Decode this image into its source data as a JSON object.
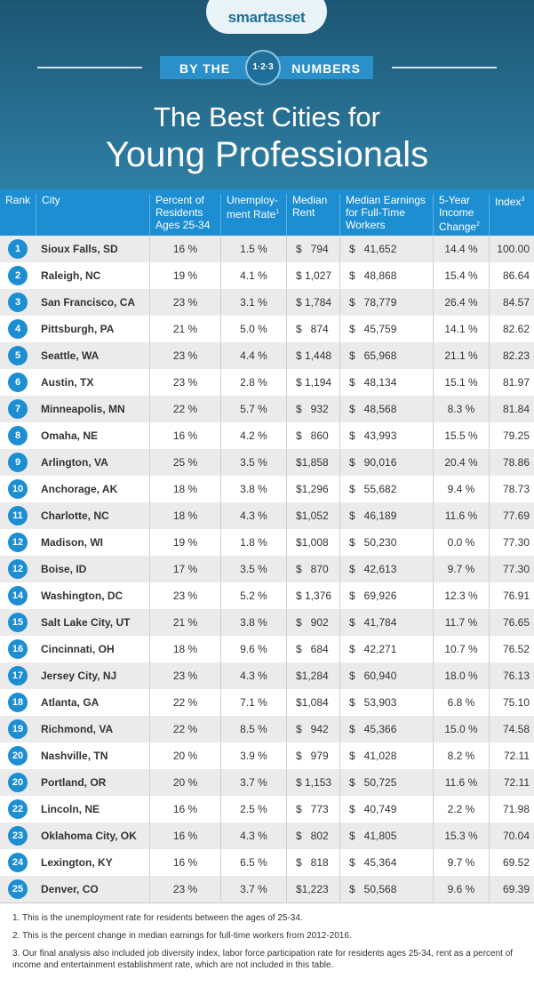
{
  "header": {
    "logo": "smartasset",
    "banner": [
      "BY THE",
      "1·2·3",
      "NUMBERS"
    ],
    "title_line1": "The Best Cities for",
    "title_line2": "Young Professionals"
  },
  "table": {
    "columns": [
      {
        "text": "Rank"
      },
      {
        "text": "City"
      },
      {
        "text": "Percent of Residents Ages 25-34"
      },
      {
        "text": "Unemploy-ment Rate",
        "note": "1"
      },
      {
        "text": "Median Rent"
      },
      {
        "text": "Median Earnings for Full-Time Workers"
      },
      {
        "text": "5-Year Income Change",
        "note": "2"
      },
      {
        "text": "Index",
        "note": "3"
      }
    ],
    "rows": [
      [
        "1",
        "Sioux Falls, SD",
        "16 %",
        "1.5 %",
        "$   794",
        "$   41,652",
        "14.4 %",
        "100.00"
      ],
      [
        "2",
        "Raleigh, NC",
        "19 %",
        "4.1 %",
        "$ 1,027",
        "$   48,868",
        "15.4 %",
        "86.64"
      ],
      [
        "3",
        "San Francisco, CA",
        "23 %",
        "3.1 %",
        "$ 1,784",
        "$   78,779",
        "26.4 %",
        "84.57"
      ],
      [
        "4",
        "Pittsburgh, PA",
        "21 %",
        "5.0 %",
        "$   874",
        "$   45,759",
        "14.1 %",
        "82.62"
      ],
      [
        "5",
        "Seattle, WA",
        "23 %",
        "4.4 %",
        "$ 1,448",
        "$   65,968",
        "21.1 %",
        "82.23"
      ],
      [
        "6",
        "Austin, TX",
        "23 %",
        "2.8 %",
        "$ 1,194",
        "$   48,134",
        "15.1 %",
        "81.97"
      ],
      [
        "7",
        "Minneapolis, MN",
        "22 %",
        "5.7 %",
        "$   932",
        "$   48,568",
        "8.3 %",
        "81.84"
      ],
      [
        "8",
        "Omaha, NE",
        "16 %",
        "4.2 %",
        "$   860",
        "$   43,993",
        "15.5 %",
        "79.25"
      ],
      [
        "9",
        "Arlington, VA",
        "25 %",
        "3.5 %",
        "$1,858",
        "$   90,016",
        "20.4 %",
        "78.86"
      ],
      [
        "10",
        "Anchorage, AK",
        "18 %",
        "3.8 %",
        "$1,296",
        "$   55,682",
        "9.4 %",
        "78.73"
      ],
      [
        "11",
        "Charlotte, NC",
        "18 %",
        "4.3 %",
        "$1,052",
        "$   46,189",
        "11.6 %",
        "77.69"
      ],
      [
        "12",
        "Madison, WI",
        "19 %",
        "1.8 %",
        "$1,008",
        "$   50,230",
        "0.0 %",
        "77.30"
      ],
      [
        "12",
        "Boise, ID",
        "17 %",
        "3.5 %",
        "$   870",
        "$   42,613",
        "9.7 %",
        "77.30"
      ],
      [
        "14",
        "Washington, DC",
        "23 %",
        "5.2 %",
        "$ 1,376",
        "$   69,926",
        "12.3 %",
        "76.91"
      ],
      [
        "15",
        "Salt Lake City, UT",
        "21 %",
        "3.8 %",
        "$   902",
        "$   41,784",
        "11.7 %",
        "76.65"
      ],
      [
        "16",
        "Cincinnati, OH",
        "18 %",
        "9.6 %",
        "$   684",
        "$   42,271",
        "10.7 %",
        "76.52"
      ],
      [
        "17",
        "Jersey City, NJ",
        "23 %",
        "4.3 %",
        "$1,284",
        "$   60,940",
        "18.0 %",
        "76.13"
      ],
      [
        "18",
        "Atlanta, GA",
        "22 %",
        "7.1 %",
        "$1,084",
        "$   53,903",
        "6.8 %",
        "75.10"
      ],
      [
        "19",
        "Richmond, VA",
        "22 %",
        "8.5 %",
        "$   942",
        "$   45,366",
        "15.0 %",
        "74.58"
      ],
      [
        "20",
        "Nashville, TN",
        "20 %",
        "3.9 %",
        "$   979",
        "$   41,028",
        "8.2 %",
        "72.11"
      ],
      [
        "20",
        "Portland, OR",
        "20 %",
        "3.7 %",
        "$ 1,153",
        "$   50,725",
        "11.6 %",
        "72.11"
      ],
      [
        "22",
        "Lincoln, NE",
        "16 %",
        "2.5 %",
        "$   773",
        "$   40,749",
        "2.2 %",
        "71.98"
      ],
      [
        "23",
        "Oklahoma City, OK",
        "16 %",
        "4.3 %",
        "$   802",
        "$   41,805",
        "15.3 %",
        "70.04"
      ],
      [
        "24",
        "Lexington, KY",
        "16 %",
        "6.5 %",
        "$   818",
        "$   45,364",
        "9.7 %",
        "69.52"
      ],
      [
        "25",
        "Denver, CO",
        "23 %",
        "3.7 %",
        "$1,223",
        "$   50,568",
        "9.6 %",
        "69.39"
      ]
    ]
  },
  "footnotes": [
    "1.  This is the unemployment rate for residents between the ages of 25-34.",
    "2.  This is the percent change in median earnings for full-time workers from 2012-2016.",
    "3.  Our final analysis also included job diversity index, labor force participation rate for residents ages 25-34, rent as a percent of income and entertainment establishment rate, which are not included in this table."
  ]
}
